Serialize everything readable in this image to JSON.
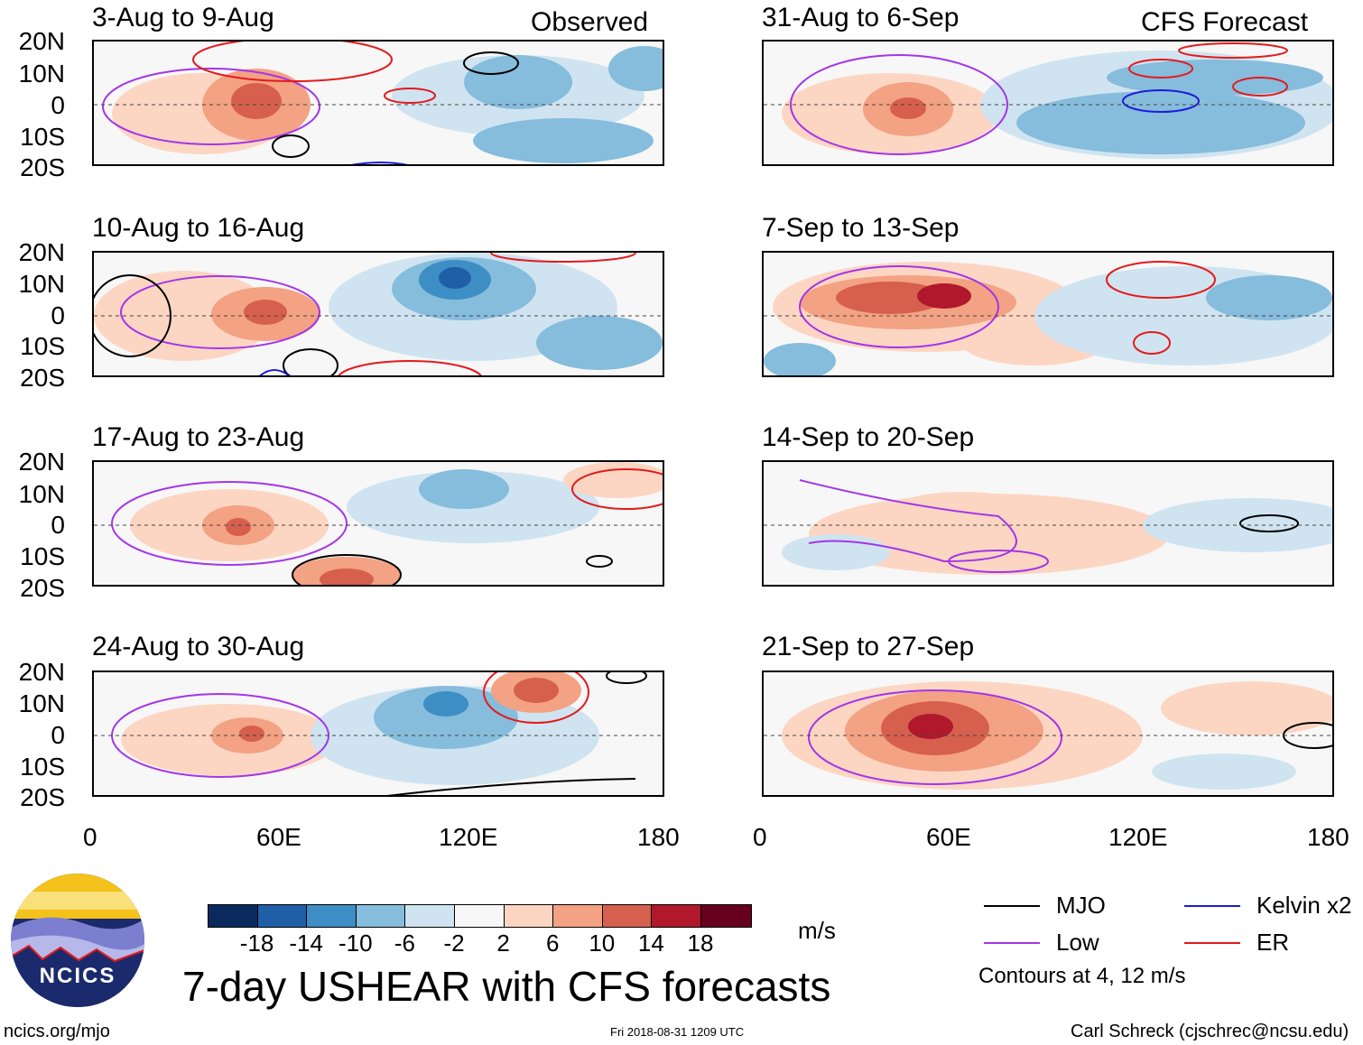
{
  "column_titles": {
    "left": "Observed",
    "right": "CFS Forecast"
  },
  "panels": [
    {
      "label": "3-Aug to 9-Aug"
    },
    {
      "label": "10-Aug to 16-Aug"
    },
    {
      "label": "17-Aug to 23-Aug"
    },
    {
      "label": "24-Aug to 30-Aug"
    },
    {
      "label": "31-Aug to 6-Sep"
    },
    {
      "label": "7-Sep to 13-Sep"
    },
    {
      "label": "14-Sep to 20-Sep"
    },
    {
      "label": "21-Sep to 27-Sep"
    }
  ],
  "lat_labels": [
    "20N",
    "10N",
    "0",
    "10S",
    "20S"
  ],
  "lon_labels": [
    "0",
    "60E",
    "120E",
    "180"
  ],
  "colorbar": {
    "units": "m/s",
    "ticks": [
      "-18",
      "-14",
      "-10",
      "-6",
      "-2",
      "2",
      "6",
      "10",
      "14",
      "18"
    ],
    "colors": [
      "#0a2a5e",
      "#1f5fa8",
      "#3d8ec4",
      "#86bcdc",
      "#cfe4f0",
      "#f7f7f7",
      "#fcd6c2",
      "#f3a283",
      "#d6604d",
      "#b1182b",
      "#67001f"
    ]
  },
  "legend": [
    {
      "label": "MJO",
      "color": "#000000"
    },
    {
      "label": "Kelvin x2",
      "color": "#1c1cd6"
    },
    {
      "label": "Low",
      "color": "#a335e8"
    },
    {
      "label": "ER",
      "color": "#e31a1c"
    }
  ],
  "contour_note": "Contours at 4, 12 m/s",
  "main_title": "7-day USHEAR with CFS forecasts",
  "logo_text": "NCICS",
  "footer": {
    "left": "ncics.org/mjo",
    "center": "Fri 2018-08-31 1209 UTC",
    "right": "Carl Schreck (cjschrec@ncsu.edu)"
  }
}
